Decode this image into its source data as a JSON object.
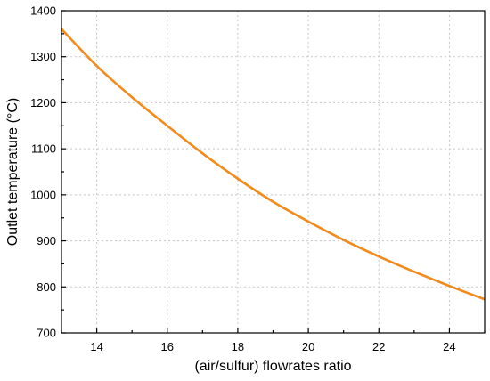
{
  "chart_data": {
    "type": "line",
    "title": "",
    "xlabel": "(air/sulfur) flowrates ratio",
    "ylabel": "Outlet temperature (°C)",
    "xlim": [
      13,
      25
    ],
    "ylim": [
      700,
      1400
    ],
    "xticks": [
      14,
      16,
      18,
      20,
      22,
      24
    ],
    "yticks": [
      700,
      800,
      900,
      1000,
      1100,
      1200,
      1300,
      1400
    ],
    "xtick_labels": [
      "14",
      "16",
      "18",
      "20",
      "22",
      "24"
    ],
    "ytick_labels": [
      "700",
      "800",
      "900",
      "1000",
      "1100",
      "1200",
      "1300",
      "1400"
    ],
    "grid": true,
    "series": [
      {
        "color": "#f28a1c",
        "x": [
          13,
          14,
          15,
          16,
          17,
          18,
          19,
          20,
          21,
          22,
          23,
          24,
          25
        ],
        "y": [
          1360,
          1280,
          1212,
          1150,
          1090,
          1035,
          985,
          942,
          902,
          866,
          833,
          802,
          773
        ]
      }
    ]
  }
}
